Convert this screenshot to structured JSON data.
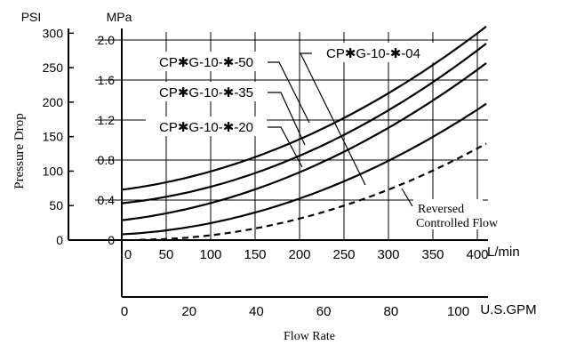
{
  "chart_data": {
    "type": "line",
    "title": "",
    "xlabel": "Flow Rate",
    "ylabel": "Pressure Drop",
    "x_unit": "L/min",
    "x2_unit": "U.S.GPM",
    "y_unit_psi": "PSI",
    "y_unit_mpa": "MPa",
    "xlim": [
      0,
      410
    ],
    "ylim_mpa": [
      0,
      2.1
    ],
    "grid": true,
    "x_ticks": [
      0,
      50,
      100,
      150,
      200,
      250,
      300,
      350,
      400
    ],
    "x_tick_labels": [
      "0",
      "50",
      "100",
      "150",
      "200",
      "250",
      "300",
      "350",
      "400"
    ],
    "gpm_ticks": [
      0,
      20,
      40,
      60,
      80,
      100
    ],
    "gpm_tick_labels": [
      "0",
      "20",
      "40",
      "60",
      "80",
      "100"
    ],
    "mpa_ticks": [
      0,
      0.4,
      0.8,
      1.2,
      1.6,
      2.0
    ],
    "mpa_tick_labels": [
      "0",
      "0.4",
      "0.8",
      "1.2",
      "1.6",
      "2.0"
    ],
    "psi_ticks": [
      0,
      50,
      100,
      150,
      200,
      250,
      300
    ],
    "psi_tick_labels": [
      "0",
      "50",
      "100",
      "150",
      "200",
      "250",
      "300"
    ],
    "series": [
      {
        "name": "CP✱G-10-✱-50",
        "style": "solid",
        "x": [
          0,
          50,
          100,
          150,
          200,
          250,
          300,
          350,
          410
        ],
        "y": [
          0.52,
          0.57,
          0.67,
          0.82,
          1.01,
          1.23,
          1.48,
          1.76,
          2.12
        ]
      },
      {
        "name": "CP✱G-10-✱-35",
        "style": "solid",
        "x": [
          0,
          50,
          100,
          150,
          200,
          250,
          300,
          350,
          410
        ],
        "y": [
          0.38,
          0.43,
          0.52,
          0.66,
          0.84,
          1.06,
          1.31,
          1.59,
          1.95
        ]
      },
      {
        "name": "CP✱G-10-✱-20",
        "style": "solid",
        "x": [
          0,
          50,
          100,
          150,
          200,
          250,
          300,
          350,
          410
        ],
        "y": [
          0.21,
          0.26,
          0.36,
          0.5,
          0.68,
          0.89,
          1.13,
          1.4,
          1.76
        ]
      },
      {
        "name": "CP✱G-10-✱-04",
        "style": "solid",
        "x": [
          0,
          50,
          100,
          150,
          200,
          250,
          300,
          350,
          410
        ],
        "y": [
          0.06,
          0.09,
          0.17,
          0.28,
          0.42,
          0.59,
          0.79,
          1.02,
          1.37
        ]
      },
      {
        "name": "Reversed Controlled Flow",
        "style": "dashed",
        "x": [
          20,
          50,
          100,
          150,
          200,
          250,
          300,
          350,
          410
        ],
        "y": [
          0.0,
          0.01,
          0.05,
          0.12,
          0.22,
          0.34,
          0.5,
          0.69,
          0.97
        ]
      }
    ],
    "annotations": [
      {
        "text": "CP✱G-10-✱-50"
      },
      {
        "text": "CP✱G-10-✱-35"
      },
      {
        "text": "CP✱G-10-✱-20"
      },
      {
        "text": "CP✱G-10-✱-04"
      },
      {
        "text": "Reversed"
      },
      {
        "text": "Controlled Flow"
      }
    ]
  }
}
